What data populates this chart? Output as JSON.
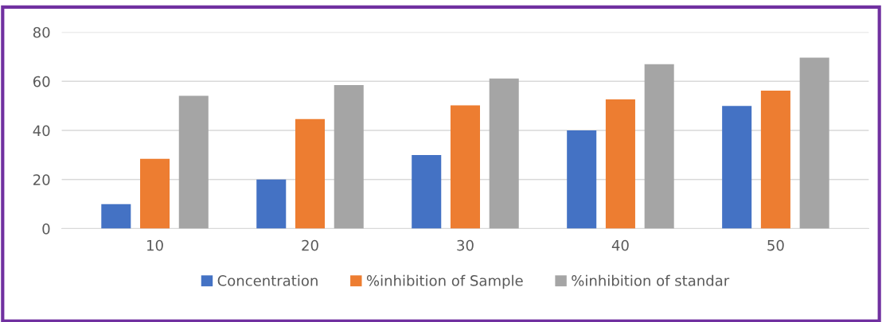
{
  "chart_data": {
    "type": "bar",
    "categories": [
      "10",
      "20",
      "30",
      "40",
      "50"
    ],
    "series": [
      {
        "name": "Concentration",
        "color": "#4472c4",
        "values": [
          10,
          20,
          30,
          40,
          50
        ]
      },
      {
        "name": "%inhibition of Sample",
        "color": "#ed7d31",
        "values": [
          28.4,
          44.6,
          50.2,
          52.6,
          56.2
        ]
      },
      {
        "name": "%inhibition of standar",
        "color": "#a5a5a5",
        "values": [
          54.1,
          58.5,
          61.1,
          67.0,
          69.6
        ]
      }
    ],
    "ylim": [
      0,
      80
    ],
    "yticks": [
      0,
      20,
      40,
      60,
      80
    ],
    "grid": "y",
    "legend": "bottom"
  }
}
